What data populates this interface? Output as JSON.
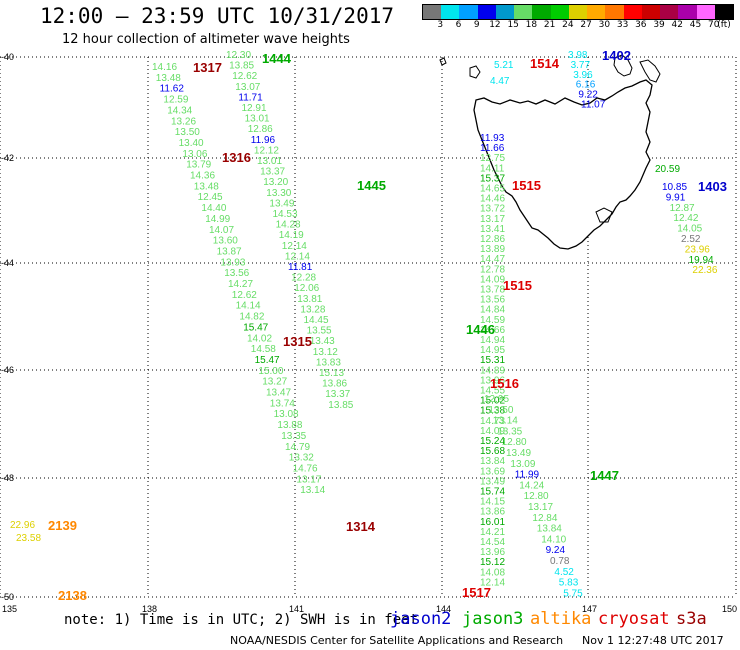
{
  "header": {
    "title": "12:00 – 23:59 UTC 10/31/2017",
    "subtitle": "12 hour collection of altimeter wave heights"
  },
  "legend": {
    "colors": [
      "#777777",
      "#00e5ee",
      "#00a0ff",
      "#0000ee",
      "#0099cc",
      "#66dd66",
      "#00aa00",
      "#00cc00",
      "#ddd000",
      "#ffaa00",
      "#ff7700",
      "#ff0000",
      "#cc0000",
      "#aa0044",
      "#aa00aa",
      "#ff66ff",
      "#000000"
    ],
    "labels": [
      "3",
      "6",
      "9",
      "12",
      "15",
      "18",
      "21",
      "24",
      "27",
      "30",
      "33",
      "36",
      "39",
      "42",
      "45",
      "70",
      "(ft)"
    ]
  },
  "axes": {
    "lon_ticks": [
      "135",
      "138",
      "141",
      "144",
      "147",
      "150"
    ],
    "lat_ticks": [
      "-40",
      "-42",
      "-44",
      "-46",
      "-48",
      "-50"
    ]
  },
  "swh_values": [
    {
      "v": "12.30",
      "c": "#66dd66"
    },
    {
      "v": "13.85",
      "c": "#66dd66"
    },
    {
      "v": "12.62",
      "c": "#66dd66"
    },
    {
      "v": "13.07",
      "c": "#66dd66"
    },
    {
      "v": "11.71",
      "c": "#0000ee"
    },
    {
      "v": "12.91",
      "c": "#66dd66"
    },
    {
      "v": "13.01",
      "c": "#66dd66"
    },
    {
      "v": "12.86",
      "c": "#66dd66"
    },
    {
      "v": "11.96",
      "c": "#0000ee"
    },
    {
      "v": "12.12",
      "c": "#66dd66"
    },
    {
      "v": "13.01",
      "c": "#66dd66"
    },
    {
      "v": "13.37",
      "c": "#66dd66"
    },
    {
      "v": "13.20",
      "c": "#66dd66"
    },
    {
      "v": "13.30",
      "c": "#66dd66"
    },
    {
      "v": "13.49",
      "c": "#66dd66"
    },
    {
      "v": "14.53",
      "c": "#66dd66"
    },
    {
      "v": "14.28",
      "c": "#66dd66"
    },
    {
      "v": "14.19",
      "c": "#66dd66"
    },
    {
      "v": "12.14",
      "c": "#66dd66"
    },
    {
      "v": "12.14",
      "c": "#66dd66"
    },
    {
      "v": "11.81",
      "c": "#0000ee"
    },
    {
      "v": "12.28",
      "c": "#66dd66"
    },
    {
      "v": "12.06",
      "c": "#66dd66"
    },
    {
      "v": "13.81",
      "c": "#66dd66"
    },
    {
      "v": "13.28",
      "c": "#66dd66"
    },
    {
      "v": "14.45",
      "c": "#66dd66"
    },
    {
      "v": "13.55",
      "c": "#66dd66"
    },
    {
      "v": "13.43",
      "c": "#66dd66"
    },
    {
      "v": "13.12",
      "c": "#66dd66"
    },
    {
      "v": "13.83",
      "c": "#66dd66"
    },
    {
      "v": "15.13",
      "c": "#66dd66"
    },
    {
      "v": "13.86",
      "c": "#66dd66"
    },
    {
      "v": "13.37",
      "c": "#66dd66"
    },
    {
      "v": "13.85",
      "c": "#66dd66"
    },
    {
      "v": "14.16",
      "c": "#66dd66"
    },
    {
      "v": "13.48",
      "c": "#66dd66"
    },
    {
      "v": "11.62",
      "c": "#0000ee"
    },
    {
      "v": "12.59",
      "c": "#66dd66"
    },
    {
      "v": "14.34",
      "c": "#66dd66"
    },
    {
      "v": "13.26",
      "c": "#66dd66"
    },
    {
      "v": "13.50",
      "c": "#66dd66"
    },
    {
      "v": "13.40",
      "c": "#66dd66"
    },
    {
      "v": "13.06",
      "c": "#66dd66"
    },
    {
      "v": "13.79",
      "c": "#66dd66"
    },
    {
      "v": "14.36",
      "c": "#66dd66"
    },
    {
      "v": "13.48",
      "c": "#66dd66"
    },
    {
      "v": "12.45",
      "c": "#66dd66"
    },
    {
      "v": "14.40",
      "c": "#66dd66"
    },
    {
      "v": "14.99",
      "c": "#66dd66"
    },
    {
      "v": "14.07",
      "c": "#66dd66"
    },
    {
      "v": "13.60",
      "c": "#66dd66"
    },
    {
      "v": "13.87",
      "c": "#66dd66"
    },
    {
      "v": "13.93",
      "c": "#66dd66"
    },
    {
      "v": "13.56",
      "c": "#66dd66"
    },
    {
      "v": "14.27",
      "c": "#66dd66"
    },
    {
      "v": "12.62",
      "c": "#66dd66"
    },
    {
      "v": "14.14",
      "c": "#66dd66"
    },
    {
      "v": "14.82",
      "c": "#66dd66"
    },
    {
      "v": "15.47",
      "c": "#00aa00"
    },
    {
      "v": "14.02",
      "c": "#66dd66"
    },
    {
      "v": "14.58",
      "c": "#66dd66"
    },
    {
      "v": "15.47",
      "c": "#00aa00"
    },
    {
      "v": "15.00",
      "c": "#66dd66"
    },
    {
      "v": "13.27",
      "c": "#66dd66"
    },
    {
      "v": "13.47",
      "c": "#66dd66"
    },
    {
      "v": "13.74",
      "c": "#66dd66"
    },
    {
      "v": "13.08",
      "c": "#66dd66"
    },
    {
      "v": "13.88",
      "c": "#66dd66"
    },
    {
      "v": "13.35",
      "c": "#66dd66"
    },
    {
      "v": "14.79",
      "c": "#66dd66"
    },
    {
      "v": "13.32",
      "c": "#66dd66"
    },
    {
      "v": "14.76",
      "c": "#66dd66"
    },
    {
      "v": "13.17",
      "c": "#66dd66"
    },
    {
      "v": "13.14",
      "c": "#66dd66"
    },
    {
      "v": "11.93",
      "c": "#0000ee"
    },
    {
      "v": "11.66",
      "c": "#0000ee"
    },
    {
      "v": "12.75",
      "c": "#66dd66"
    },
    {
      "v": "14.11",
      "c": "#66dd66"
    },
    {
      "v": "15.37",
      "c": "#00aa00"
    },
    {
      "v": "14.65",
      "c": "#66dd66"
    },
    {
      "v": "14.46",
      "c": "#66dd66"
    },
    {
      "v": "13.72",
      "c": "#66dd66"
    },
    {
      "v": "13.17",
      "c": "#66dd66"
    },
    {
      "v": "13.41",
      "c": "#66dd66"
    },
    {
      "v": "12.86",
      "c": "#66dd66"
    },
    {
      "v": "13.89",
      "c": "#66dd66"
    },
    {
      "v": "14.47",
      "c": "#66dd66"
    },
    {
      "v": "12.78",
      "c": "#66dd66"
    },
    {
      "v": "14.09",
      "c": "#66dd66"
    },
    {
      "v": "13.78",
      "c": "#66dd66"
    },
    {
      "v": "13.56",
      "c": "#66dd66"
    },
    {
      "v": "14.84",
      "c": "#66dd66"
    },
    {
      "v": "14.59",
      "c": "#66dd66"
    },
    {
      "v": "14.66",
      "c": "#66dd66"
    },
    {
      "v": "14.94",
      "c": "#66dd66"
    },
    {
      "v": "14.95",
      "c": "#66dd66"
    },
    {
      "v": "15.31",
      "c": "#00aa00"
    },
    {
      "v": "14.89",
      "c": "#66dd66"
    },
    {
      "v": "13.96",
      "c": "#66dd66"
    },
    {
      "v": "14.55",
      "c": "#66dd66"
    },
    {
      "v": "15.02",
      "c": "#00aa00"
    },
    {
      "v": "15.38",
      "c": "#00aa00"
    },
    {
      "v": "14.73",
      "c": "#66dd66"
    },
    {
      "v": "14.09",
      "c": "#66dd66"
    },
    {
      "v": "15.24",
      "c": "#00aa00"
    },
    {
      "v": "15.68",
      "c": "#00aa00"
    },
    {
      "v": "13.84",
      "c": "#66dd66"
    },
    {
      "v": "13.69",
      "c": "#66dd66"
    },
    {
      "v": "13.49",
      "c": "#66dd66"
    },
    {
      "v": "15.74",
      "c": "#00aa00"
    },
    {
      "v": "14.15",
      "c": "#66dd66"
    },
    {
      "v": "13.86",
      "c": "#66dd66"
    },
    {
      "v": "16.01",
      "c": "#00aa00"
    },
    {
      "v": "14.21",
      "c": "#66dd66"
    },
    {
      "v": "14.54",
      "c": "#66dd66"
    },
    {
      "v": "13.96",
      "c": "#66dd66"
    },
    {
      "v": "15.12",
      "c": "#00aa00"
    },
    {
      "v": "14.08",
      "c": "#66dd66"
    },
    {
      "v": "12.14",
      "c": "#66dd66"
    },
    {
      "v": "12.95",
      "c": "#66dd66"
    },
    {
      "v": "13.50",
      "c": "#66dd66"
    },
    {
      "v": "13.14",
      "c": "#66dd66"
    },
    {
      "v": "13.35",
      "c": "#66dd66"
    },
    {
      "v": "12.80",
      "c": "#66dd66"
    },
    {
      "v": "13.49",
      "c": "#66dd66"
    },
    {
      "v": "13.09",
      "c": "#66dd66"
    },
    {
      "v": "11.99",
      "c": "#0000ee"
    },
    {
      "v": "14.24",
      "c": "#66dd66"
    },
    {
      "v": "12.80",
      "c": "#66dd66"
    },
    {
      "v": "13.17",
      "c": "#66dd66"
    },
    {
      "v": "12.84",
      "c": "#66dd66"
    },
    {
      "v": "13.84",
      "c": "#66dd66"
    },
    {
      "v": "14.10",
      "c": "#66dd66"
    },
    {
      "v": "9.24",
      "c": "#0000ee"
    },
    {
      "v": "0.78",
      "c": "#777777"
    },
    {
      "v": "4.52",
      "c": "#00e5ee"
    },
    {
      "v": "5.83",
      "c": "#00e5ee"
    },
    {
      "v": "5.75",
      "c": "#00e5ee"
    },
    {
      "v": "5.21",
      "c": "#00e5ee"
    },
    {
      "v": "4.47",
      "c": "#00e5ee"
    },
    {
      "v": "3.98",
      "c": "#00e5ee"
    },
    {
      "v": "3.77",
      "c": "#00e5ee"
    },
    {
      "v": "3.96",
      "c": "#00e5ee"
    },
    {
      "v": "6.16",
      "c": "#00a0ff"
    },
    {
      "v": "9.22",
      "c": "#0000ee"
    },
    {
      "v": "11.07",
      "c": "#0000ee"
    },
    {
      "v": "10.85",
      "c": "#0000ee"
    },
    {
      "v": "9.91",
      "c": "#0000ee"
    },
    {
      "v": "12.87",
      "c": "#66dd66"
    },
    {
      "v": "12.42",
      "c": "#66dd66"
    },
    {
      "v": "14.05",
      "c": "#66dd66"
    },
    {
      "v": "2.52",
      "c": "#777777"
    },
    {
      "v": "23.96",
      "c": "#ddd000"
    },
    {
      "v": "19.94",
      "c": "#00aa00"
    },
    {
      "v": "22.36",
      "c": "#ddd000"
    },
    {
      "v": "20.59",
      "c": "#00aa00"
    },
    {
      "v": "22.96",
      "c": "#ddd000"
    },
    {
      "v": "23.58",
      "c": "#ddd000"
    }
  ],
  "pass_labels": [
    {
      "v": "1444",
      "c": "#00aa00"
    },
    {
      "v": "1317",
      "c": "#990000"
    },
    {
      "v": "1316",
      "c": "#990000"
    },
    {
      "v": "1445",
      "c": "#00aa00"
    },
    {
      "v": "1315",
      "c": "#990000"
    },
    {
      "v": "1314",
      "c": "#990000"
    },
    {
      "v": "1514",
      "c": "#dd0000"
    },
    {
      "v": "1402",
      "c": "#0000cc"
    },
    {
      "v": "1515",
      "c": "#dd0000"
    },
    {
      "v": "1403",
      "c": "#0000cc"
    },
    {
      "v": "1515",
      "c": "#dd0000"
    },
    {
      "v": "1446",
      "c": "#00aa00"
    },
    {
      "v": "1516",
      "c": "#dd0000"
    },
    {
      "v": "1447",
      "c": "#00aa00"
    },
    {
      "v": "2139",
      "c": "#ff8800"
    },
    {
      "v": "2138",
      "c": "#ff8800"
    },
    {
      "v": "1517",
      "c": "#dd0000"
    }
  ],
  "footer": {
    "note": "note: 1) Time is in UTC; 2) SWH is in feet",
    "satellites": [
      {
        "name": "jason2",
        "color": "#0000cc"
      },
      {
        "name": "jason3",
        "color": "#00aa00"
      },
      {
        "name": "altika",
        "color": "#ff8800"
      },
      {
        "name": "cryosat",
        "color": "#dd0000"
      },
      {
        "name": "s3a",
        "color": "#990000"
      }
    ],
    "credit": "NOAA/NESDIS Center for Satellite Applications and Research",
    "timestamp": "Nov  1 12:27:48 UTC 2017"
  }
}
